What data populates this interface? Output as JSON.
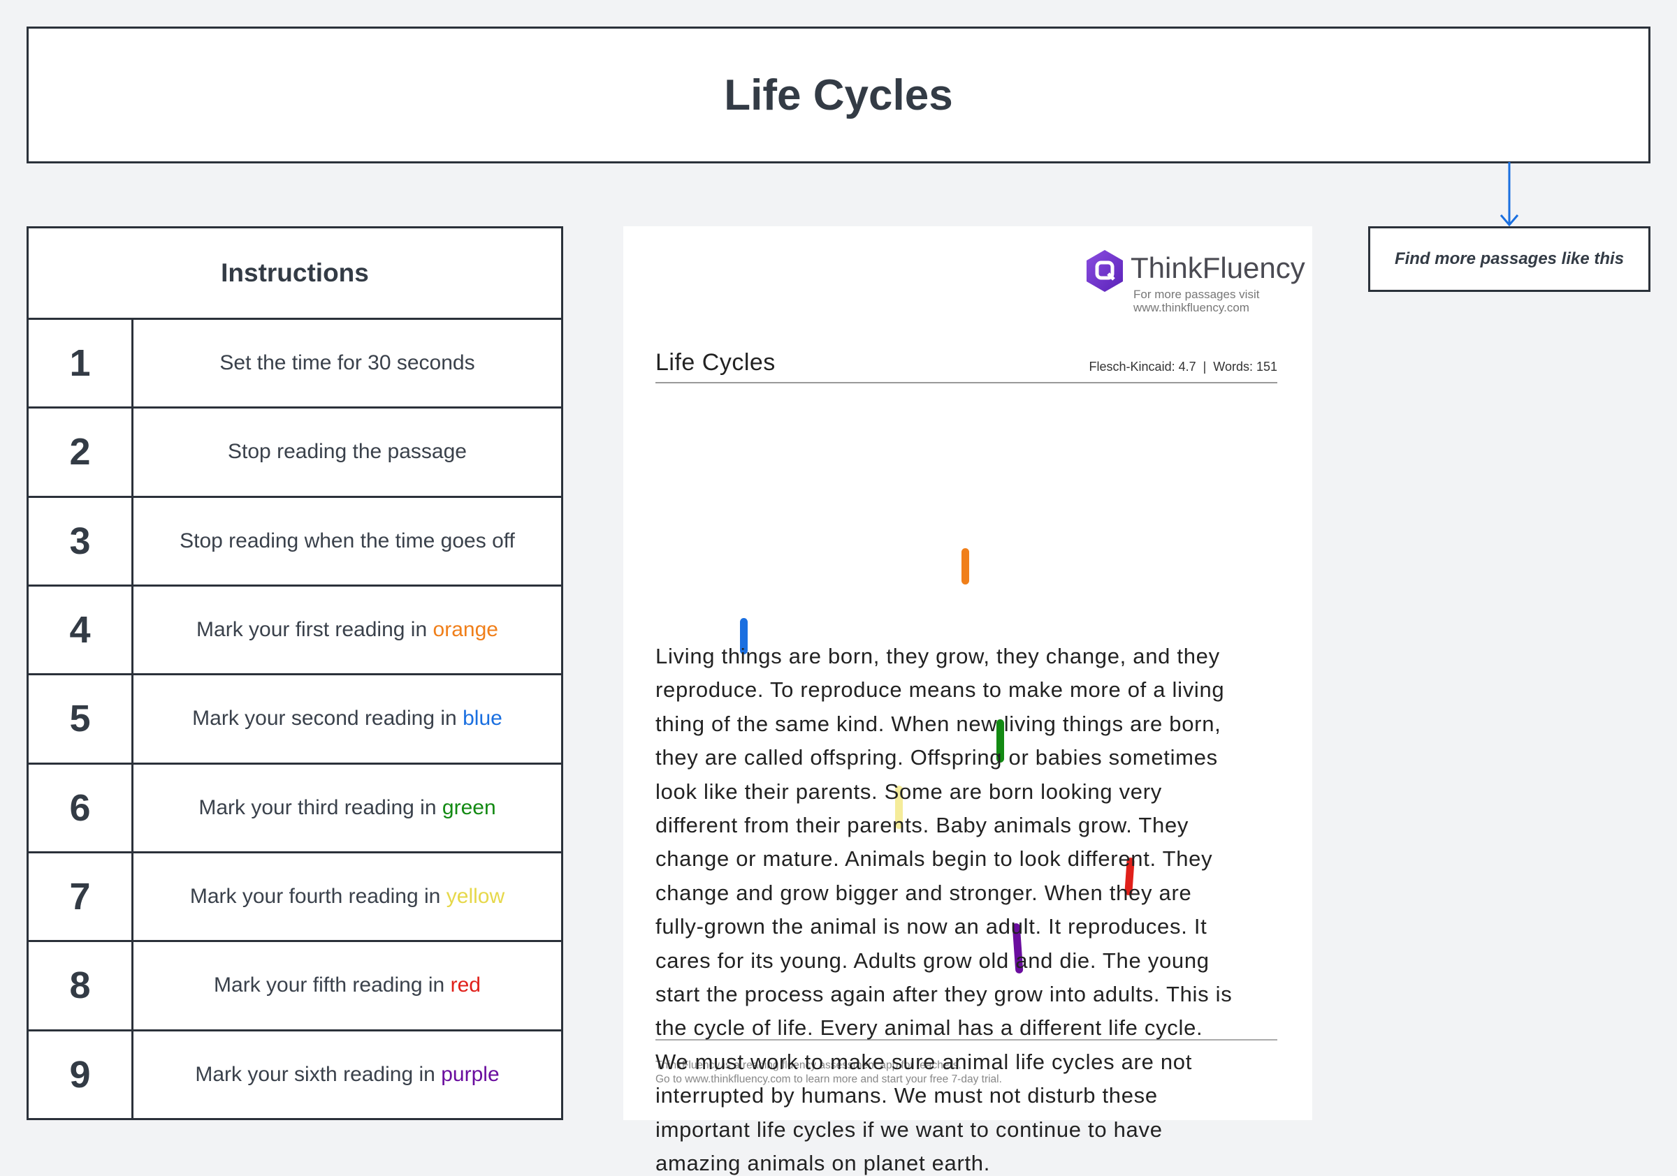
{
  "header": {
    "title": "Life Cycles"
  },
  "instructions": {
    "title": "Instructions",
    "rows": [
      {
        "number": "1",
        "text": "Set the time for 30 seconds"
      },
      {
        "number": "2",
        "text": "Stop reading the passage"
      },
      {
        "number": "3",
        "text": "Stop reading when the time goes off"
      },
      {
        "number": "4",
        "text": "Mark your first reading in",
        "highlight": "orange",
        "highlight_color": "#f07f1a"
      },
      {
        "number": "5",
        "text": "Mark your second reading in",
        "highlight": "blue",
        "highlight_color": "#1a6fe0"
      },
      {
        "number": "6",
        "text": "Mark your third reading in",
        "highlight": "green",
        "highlight_color": "#138a13"
      },
      {
        "number": "7",
        "text": "Mark your fourth reading in",
        "highlight": "yellow",
        "highlight_color": "#e6d84a"
      },
      {
        "number": "8",
        "text": "Mark your fifth reading in",
        "highlight": "red",
        "highlight_color": "#e0201a"
      },
      {
        "number": "9",
        "text": "Mark your sixth reading in",
        "highlight": "purple",
        "highlight_color": "#6a0d9e"
      }
    ]
  },
  "link": {
    "text": "Find more passages like this"
  },
  "document": {
    "brand": "ThinkFluency",
    "tagline": [
      "For more passages visit",
      "www.thinkfluency.com"
    ],
    "title": "Life Cycles",
    "meta": "Flesch-Kincaid: 4.7  |  Words: 151",
    "lines": [
      "Living things are born, they grow, they change, and they",
      "reproduce. To reproduce means to make more of a living",
      "thing of the same kind. When new living things are born,",
      "they are called offspring. Offspring or babies sometimes",
      "look like their parents. Some are born looking very",
      "different from their parents. Baby animals grow. They",
      "change or mature. Animals begin to look different. They",
      "change and grow bigger and stronger. When they are",
      "fully-grown the animal is now an adult. It reproduces. It",
      "cares for its young. Adults grow old and die. The young",
      "start the process again after they grow into adults. This is",
      "the cycle of life. Every animal has a different life cycle.",
      "We must work to make sure animal life cycles are not",
      "interrupted by humans. We must not disturb these",
      "important life cycles if we want to continue to have",
      "amazing animals on planet earth."
    ],
    "footer": [
      "ThinkFluency is a reading fluency assessment app for teachers.",
      "Go to www.thinkfluency.com to learn more and start your free 7-day trial."
    ]
  }
}
